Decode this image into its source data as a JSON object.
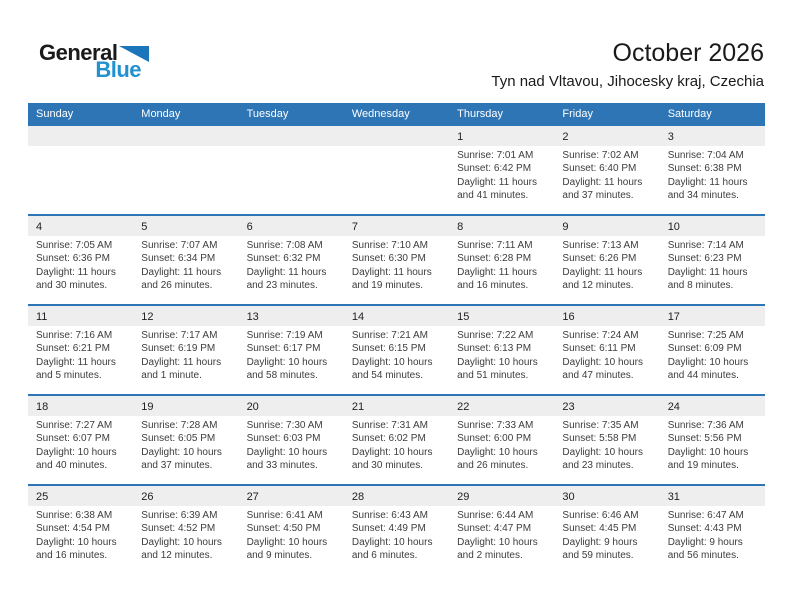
{
  "logo": {
    "general": "General",
    "blue": "Blue"
  },
  "header": {
    "title": "October 2026",
    "subtitle": "Tyn nad Vltavou, Jihocesky kraj, Czechia"
  },
  "colors": {
    "header_blue": "#2e75b6",
    "row_line_blue": "#2e75b6",
    "number_band_grey": "#eeeeee",
    "logo_text_blue": "#2191d0",
    "logo_triangle_blue": "#1b75bb"
  },
  "calendar": {
    "day_names": [
      "Sunday",
      "Monday",
      "Tuesday",
      "Wednesday",
      "Thursday",
      "Friday",
      "Saturday"
    ],
    "labels": {
      "sunrise": "Sunrise:",
      "sunset": "Sunset:",
      "daylight": "Daylight:"
    },
    "weeks": [
      [
        null,
        null,
        null,
        null,
        {
          "day": "1",
          "sunrise": "7:01 AM",
          "sunset": "6:42 PM",
          "daylight": "11 hours and 41 minutes."
        },
        {
          "day": "2",
          "sunrise": "7:02 AM",
          "sunset": "6:40 PM",
          "daylight": "11 hours and 37 minutes."
        },
        {
          "day": "3",
          "sunrise": "7:04 AM",
          "sunset": "6:38 PM",
          "daylight": "11 hours and 34 minutes."
        }
      ],
      [
        {
          "day": "4",
          "sunrise": "7:05 AM",
          "sunset": "6:36 PM",
          "daylight": "11 hours and 30 minutes."
        },
        {
          "day": "5",
          "sunrise": "7:07 AM",
          "sunset": "6:34 PM",
          "daylight": "11 hours and 26 minutes."
        },
        {
          "day": "6",
          "sunrise": "7:08 AM",
          "sunset": "6:32 PM",
          "daylight": "11 hours and 23 minutes."
        },
        {
          "day": "7",
          "sunrise": "7:10 AM",
          "sunset": "6:30 PM",
          "daylight": "11 hours and 19 minutes."
        },
        {
          "day": "8",
          "sunrise": "7:11 AM",
          "sunset": "6:28 PM",
          "daylight": "11 hours and 16 minutes."
        },
        {
          "day": "9",
          "sunrise": "7:13 AM",
          "sunset": "6:26 PM",
          "daylight": "11 hours and 12 minutes."
        },
        {
          "day": "10",
          "sunrise": "7:14 AM",
          "sunset": "6:23 PM",
          "daylight": "11 hours and 8 minutes."
        }
      ],
      [
        {
          "day": "11",
          "sunrise": "7:16 AM",
          "sunset": "6:21 PM",
          "daylight": "11 hours and 5 minutes."
        },
        {
          "day": "12",
          "sunrise": "7:17 AM",
          "sunset": "6:19 PM",
          "daylight": "11 hours and 1 minute."
        },
        {
          "day": "13",
          "sunrise": "7:19 AM",
          "sunset": "6:17 PM",
          "daylight": "10 hours and 58 minutes."
        },
        {
          "day": "14",
          "sunrise": "7:21 AM",
          "sunset": "6:15 PM",
          "daylight": "10 hours and 54 minutes."
        },
        {
          "day": "15",
          "sunrise": "7:22 AM",
          "sunset": "6:13 PM",
          "daylight": "10 hours and 51 minutes."
        },
        {
          "day": "16",
          "sunrise": "7:24 AM",
          "sunset": "6:11 PM",
          "daylight": "10 hours and 47 minutes."
        },
        {
          "day": "17",
          "sunrise": "7:25 AM",
          "sunset": "6:09 PM",
          "daylight": "10 hours and 44 minutes."
        }
      ],
      [
        {
          "day": "18",
          "sunrise": "7:27 AM",
          "sunset": "6:07 PM",
          "daylight": "10 hours and 40 minutes."
        },
        {
          "day": "19",
          "sunrise": "7:28 AM",
          "sunset": "6:05 PM",
          "daylight": "10 hours and 37 minutes."
        },
        {
          "day": "20",
          "sunrise": "7:30 AM",
          "sunset": "6:03 PM",
          "daylight": "10 hours and 33 minutes."
        },
        {
          "day": "21",
          "sunrise": "7:31 AM",
          "sunset": "6:02 PM",
          "daylight": "10 hours and 30 minutes."
        },
        {
          "day": "22",
          "sunrise": "7:33 AM",
          "sunset": "6:00 PM",
          "daylight": "10 hours and 26 minutes."
        },
        {
          "day": "23",
          "sunrise": "7:35 AM",
          "sunset": "5:58 PM",
          "daylight": "10 hours and 23 minutes."
        },
        {
          "day": "24",
          "sunrise": "7:36 AM",
          "sunset": "5:56 PM",
          "daylight": "10 hours and 19 minutes."
        }
      ],
      [
        {
          "day": "25",
          "sunrise": "6:38 AM",
          "sunset": "4:54 PM",
          "daylight": "10 hours and 16 minutes."
        },
        {
          "day": "26",
          "sunrise": "6:39 AM",
          "sunset": "4:52 PM",
          "daylight": "10 hours and 12 minutes."
        },
        {
          "day": "27",
          "sunrise": "6:41 AM",
          "sunset": "4:50 PM",
          "daylight": "10 hours and 9 minutes."
        },
        {
          "day": "28",
          "sunrise": "6:43 AM",
          "sunset": "4:49 PM",
          "daylight": "10 hours and 6 minutes."
        },
        {
          "day": "29",
          "sunrise": "6:44 AM",
          "sunset": "4:47 PM",
          "daylight": "10 hours and 2 minutes."
        },
        {
          "day": "30",
          "sunrise": "6:46 AM",
          "sunset": "4:45 PM",
          "daylight": "9 hours and 59 minutes."
        },
        {
          "day": "31",
          "sunrise": "6:47 AM",
          "sunset": "4:43 PM",
          "daylight": "9 hours and 56 minutes."
        }
      ]
    ]
  }
}
